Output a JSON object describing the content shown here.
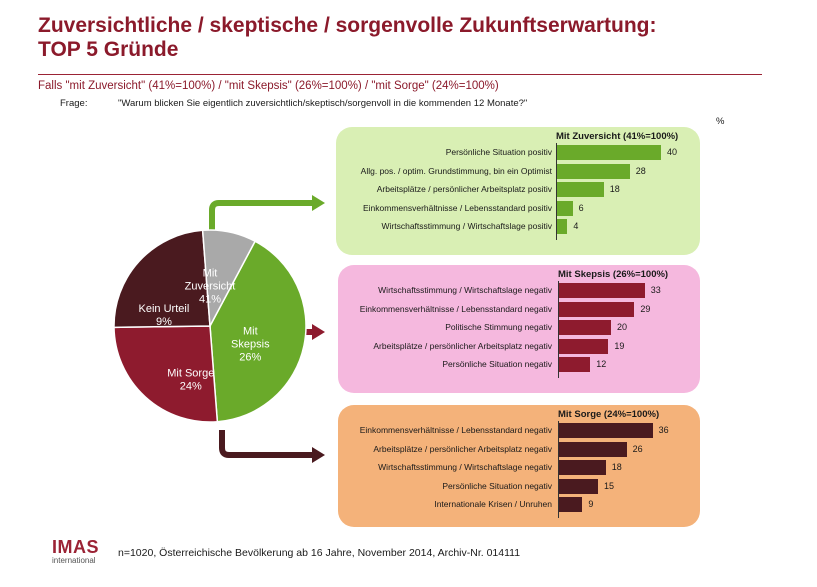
{
  "header": {
    "title_line1": "Zuversichtliche / skeptische / sorgenvolle Zukunftserwartung:",
    "title_line2": "TOP 5 Gründe",
    "basis": "Falls \"mit Zuversicht\" (41%=100%) / \"mit Skepsis\" (26%=100%) / \"mit Sorge\" (24%=100%)",
    "question_label": "Frage:",
    "question_text": "\"Warum blicken Sie eigentlich zuversichtlich/skeptisch/sorgenvoll in die kommenden 12 Monate?\"",
    "unit": "%"
  },
  "chart_data": [
    {
      "type": "pie",
      "slices": [
        {
          "label_line1": "Mit",
          "label_line2": "Zuversicht",
          "value": 41,
          "value_label": "41%",
          "color": "#6aaa2a"
        },
        {
          "label_line1": "Mit",
          "label_line2": "Skepsis",
          "value": 26,
          "value_label": "26%",
          "color": "#8e1b2e"
        },
        {
          "label_line1": "",
          "label_line2": "Mit Sorge",
          "value": 24,
          "value_label": "24%",
          "color": "#4a1a1f"
        },
        {
          "label_line1": "",
          "label_line2": "Kein Urteil",
          "value": 9,
          "value_label": "9%",
          "color": "#a9a9a9"
        }
      ]
    },
    {
      "type": "bar",
      "title": "Mit Zuversicht (41%=100%)",
      "panel_color": "#d9efb4",
      "bar_color": "#6aaa2a",
      "categories": [
        "Persönliche Situation positiv",
        "Allg. pos. / optim. Grundstimmung, bin ein Optimist",
        "Arbeitsplätze / persönlicher Arbeitsplatz positiv",
        "Einkommensverhältnisse / Lebensstandard positiv",
        "Wirtschaftsstimmung / Wirtschaftslage positiv"
      ],
      "values": [
        40,
        28,
        18,
        6,
        4
      ]
    },
    {
      "type": "bar",
      "title": "Mit Skepsis (26%=100%)",
      "panel_color": "#f5b8de",
      "bar_color": "#8e1b2e",
      "categories": [
        "Wirtschaftsstimmung / Wirtschaftslage negativ",
        "Einkommensverhältnisse / Lebensstandard negativ",
        "Politische Stimmung negativ",
        "Arbeitsplätze / persönlicher Arbeitsplatz negativ",
        "Persönliche Situation negativ"
      ],
      "values": [
        33,
        29,
        20,
        19,
        12
      ]
    },
    {
      "type": "bar",
      "title": "Mit Sorge (24%=100%)",
      "panel_color": "#f4b27a",
      "bar_color": "#4a1a1f",
      "categories": [
        "Einkommensverhältnisse / Lebensstandard negativ",
        "Arbeitsplätze / persönlicher Arbeitsplatz negativ",
        "Wirtschaftsstimmung / Wirtschaftslage negativ",
        "Persönliche Situation negativ",
        "Internationale Krisen / Unruhen"
      ],
      "values": [
        36,
        26,
        18,
        15,
        9
      ]
    }
  ],
  "footer": {
    "logo_main": "IMAS",
    "logo_sub": "international",
    "note": "n=1020, Österreichische Bevölkerung ab 16 Jahre, November 2014, Archiv-Nr. 014111"
  }
}
